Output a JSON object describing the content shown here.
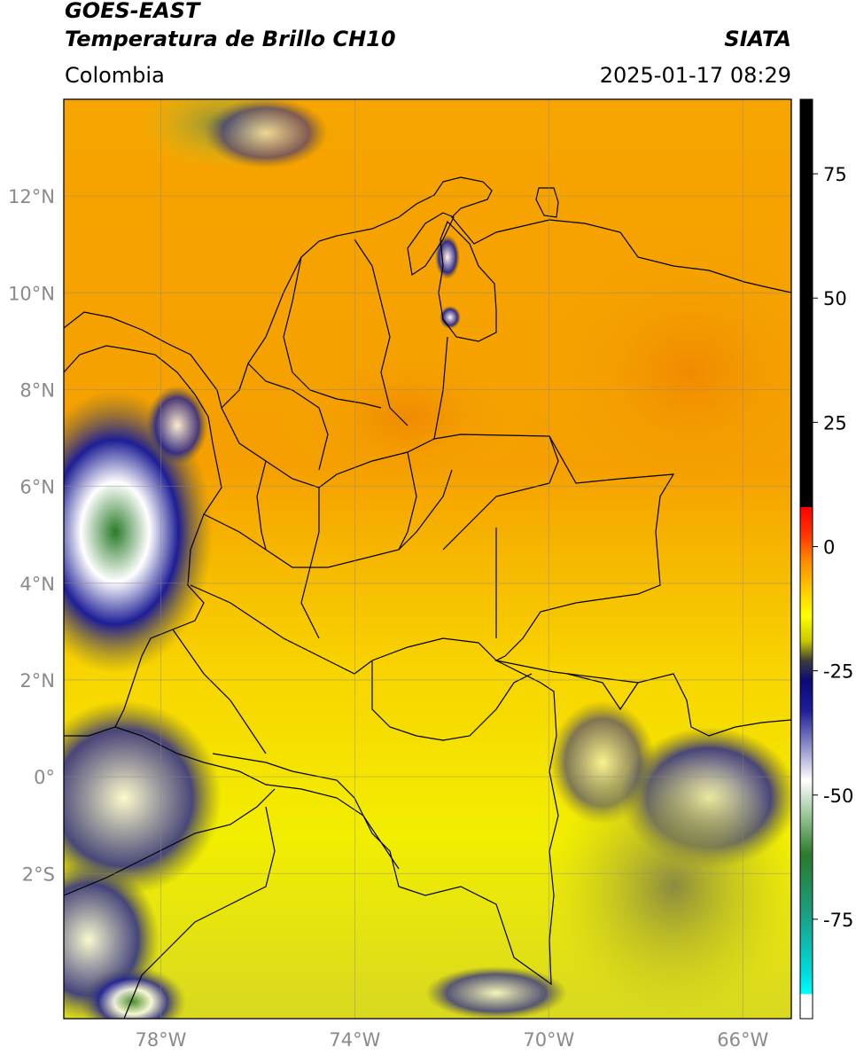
{
  "header": {
    "title_line1": "GOES-EAST",
    "title_line2": "Temperatura de Brillo CH10",
    "region": "Colombia",
    "agency": "SIATA",
    "datetime": "2025-01-17 08:29"
  },
  "map": {
    "lat_ticks": [
      "12°N",
      "10°N",
      "8°N",
      "6°N",
      "4°N",
      "2°N",
      "0°",
      "2°S"
    ],
    "lon_ticks": [
      "78°W",
      "74°W",
      "70°W",
      "66°W"
    ],
    "lat_values": [
      12,
      10,
      8,
      6,
      4,
      2,
      0,
      -2
    ],
    "lon_values": [
      -78,
      -74,
      -70,
      -66
    ],
    "extent": {
      "lon_min": -80,
      "lon_max": -65,
      "lat_min": -5,
      "lat_max": 14
    }
  },
  "colorbar": {
    "ticks": [
      "75",
      "50",
      "25",
      "0",
      "-25",
      "-50",
      "-75"
    ],
    "tick_values": [
      75,
      50,
      25,
      0,
      -25,
      -50,
      -75
    ],
    "range": [
      -95,
      90
    ],
    "stops": [
      {
        "value": 90,
        "color": "#000000"
      },
      {
        "value": 8,
        "color": "#000000"
      },
      {
        "value": 7.9,
        "color": "#ff0000"
      },
      {
        "value": 2,
        "color": "#ff3a00"
      },
      {
        "value": -3,
        "color": "#ff8c00"
      },
      {
        "value": -10,
        "color": "#ffd800"
      },
      {
        "value": -14,
        "color": "#ffff00"
      },
      {
        "value": -19,
        "color": "#c8c800"
      },
      {
        "value": -23,
        "color": "#3c3c3c"
      },
      {
        "value": -27,
        "color": "#0a0a78"
      },
      {
        "value": -33,
        "color": "#1e1e96"
      },
      {
        "value": -40,
        "color": "#8c8cc8"
      },
      {
        "value": -47,
        "color": "#ffffff"
      },
      {
        "value": -55,
        "color": "#8cbe8c"
      },
      {
        "value": -62,
        "color": "#2a7a2a"
      },
      {
        "value": -74,
        "color": "#1aa082"
      },
      {
        "value": -86,
        "color": "#00dcdc"
      },
      {
        "value": -90,
        "color": "#00ffff"
      },
      {
        "value": -90.1,
        "color": "#ffffff"
      },
      {
        "value": -95,
        "color": "#ffffff"
      }
    ]
  }
}
